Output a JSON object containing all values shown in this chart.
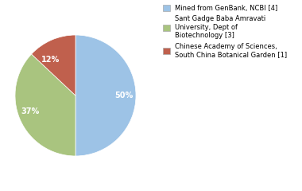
{
  "slices": [
    50,
    37,
    13
  ],
  "labels": [
    "50%",
    "37%",
    "12%"
  ],
  "colors": [
    "#9DC3E6",
    "#A9C47F",
    "#C0604D"
  ],
  "legend_labels": [
    "Mined from GenBank, NCBI [4]",
    "Sant Gadge Baba Amravati\nUniversity, Dept of\nBiotechnology [3]",
    "Chinese Academy of Sciences,\nSouth China Botanical Garden [1]"
  ],
  "legend_colors": [
    "#9DC3E6",
    "#A9C47F",
    "#C0604D"
  ],
  "startangle": 90,
  "background_color": "#ffffff",
  "label_fontsize": 7,
  "legend_fontsize": 6.0
}
